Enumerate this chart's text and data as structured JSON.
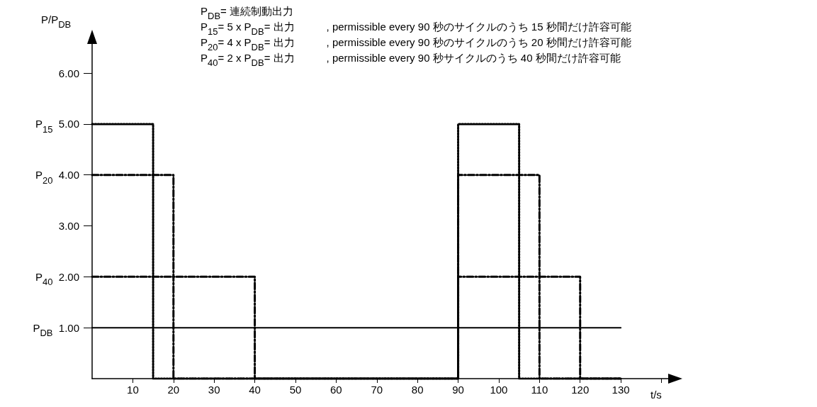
{
  "chart_data": {
    "type": "step",
    "ylabel": "P/P$_{DB}$",
    "xlabel": "t/s",
    "annotations": [
      "P$_{DB}$= 連続制動出力",
      "P$_{15}$= 5 x P$_{DB}$= 出力　　　, permissible every 90 秒のサイクルのうち 15 秒間だけ許容可能",
      "P$_{20}$= 4 x P$_{DB}$= 出力　　　, permissible every 90 秒のサイクルのうち 20 秒間だけ許容可能",
      "P$_{40}$= 2 x P$_{DB}$= 出力　　　, permissible every 90 秒サイクルのうち 40 秒間だけ許容可能"
    ],
    "series": [
      {
        "color": "#000000",
        "line_style": "dotted",
        "x": [
          0,
          15,
          90,
          105,
          130
        ],
        "values": [
          5,
          0,
          5,
          0,
          0
        ]
      },
      {
        "color": "#000000",
        "line_style": "dashed",
        "x": [
          0,
          20,
          90,
          110,
          130
        ],
        "values": [
          4,
          0,
          4,
          0,
          0
        ]
      },
      {
        "color": "#000000",
        "line_style": "dashed",
        "x": [
          0,
          40,
          90,
          120,
          130
        ],
        "values": [
          2,
          0,
          2,
          0,
          0
        ]
      },
      {
        "type": "line",
        "color": "#000000",
        "line_style": "solid",
        "x": [
          0,
          130
        ],
        "values": [
          1,
          1
        ]
      }
    ],
    "xlim": [
      0,
      142
    ],
    "xticks": [
      10,
      20,
      30,
      40,
      50,
      60,
      70,
      80,
      90,
      100,
      110,
      120,
      130,
      {
        "value": 140,
        "label": null
      }
    ],
    "ylim": [
      0,
      6.6
    ],
    "yticks": [
      {
        "value": 1,
        "label": "P$_{DB}$  1.00"
      },
      {
        "value": 2,
        "label": "P$_{40}$  2.00"
      },
      {
        "value": 3,
        "label": "3.00"
      },
      {
        "value": 4,
        "label": "P$_{20}$  4.00"
      },
      {
        "value": 5,
        "label": "P$_{15}$  5.00"
      },
      {
        "value": 6,
        "label": "6.00"
      }
    ],
    "marker": "none",
    "grid": false
  }
}
